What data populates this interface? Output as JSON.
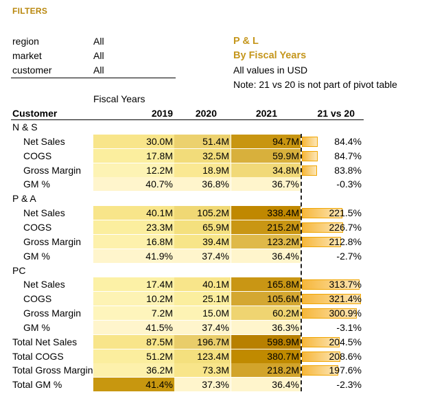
{
  "filters": {
    "title": "FILTERS",
    "items": [
      {
        "label": "region",
        "value": "All"
      },
      {
        "label": "market",
        "value": "All"
      },
      {
        "label": "customer",
        "value": "All"
      }
    ]
  },
  "report": {
    "title": "P & L",
    "subtitle": "By Fiscal Years",
    "currency_note": "All values in USD",
    "note": "Note: 21 vs 20 is not part of pivot table"
  },
  "table": {
    "group_header": "Fiscal Years",
    "columns": [
      "Customer",
      "2019",
      "2020",
      "2021",
      "21 vs 20"
    ],
    "rows": [
      {
        "label": "N & S",
        "type": "group"
      },
      {
        "label": "Net Sales",
        "type": "item",
        "v": [
          "30.0M",
          "51.4M",
          "94.7M"
        ],
        "pct": "84.4%",
        "growth": 84.4
      },
      {
        "label": "COGS",
        "type": "item",
        "v": [
          "17.8M",
          "32.5M",
          "59.9M"
        ],
        "pct": "84.7%",
        "growth": 84.7
      },
      {
        "label": "Gross Margin",
        "type": "item",
        "v": [
          "12.2M",
          "18.9M",
          "34.8M"
        ],
        "pct": "83.8%",
        "growth": 83.8
      },
      {
        "label": "GM %",
        "type": "item",
        "v": [
          "40.7%",
          "36.8%",
          "36.7%"
        ],
        "pct": "-0.3%",
        "growth": -0.3
      },
      {
        "label": "P & A",
        "type": "group"
      },
      {
        "label": "Net Sales",
        "type": "item",
        "v": [
          "40.1M",
          "105.2M",
          "338.4M"
        ],
        "pct": "221.5%",
        "growth": 221.5
      },
      {
        "label": "COGS",
        "type": "item",
        "v": [
          "23.3M",
          "65.9M",
          "215.2M"
        ],
        "pct": "226.7%",
        "growth": 226.7
      },
      {
        "label": "Gross Margin",
        "type": "item",
        "v": [
          "16.8M",
          "39.4M",
          "123.2M"
        ],
        "pct": "212.8%",
        "growth": 212.8
      },
      {
        "label": "GM %",
        "type": "item",
        "v": [
          "41.9%",
          "37.4%",
          "36.4%"
        ],
        "pct": "-2.7%",
        "growth": -2.7
      },
      {
        "label": "PC",
        "type": "group"
      },
      {
        "label": "Net Sales",
        "type": "item",
        "v": [
          "17.4M",
          "40.1M",
          "165.8M"
        ],
        "pct": "313.7%",
        "growth": 313.7
      },
      {
        "label": "COGS",
        "type": "item",
        "v": [
          "10.2M",
          "25.1M",
          "105.6M"
        ],
        "pct": "321.4%",
        "growth": 321.4
      },
      {
        "label": "Gross Margin",
        "type": "item",
        "v": [
          "7.2M",
          "15.0M",
          "60.2M"
        ],
        "pct": "300.9%",
        "growth": 300.9
      },
      {
        "label": "GM %",
        "type": "item",
        "v": [
          "41.5%",
          "37.4%",
          "36.3%"
        ],
        "pct": "-3.1%",
        "growth": -3.1
      },
      {
        "label": "Total Net Sales",
        "type": "total",
        "v": [
          "87.5M",
          "196.7M",
          "598.9M"
        ],
        "pct": "204.5%",
        "growth": 204.5
      },
      {
        "label": "Total COGS",
        "type": "total",
        "v": [
          "51.2M",
          "123.4M",
          "380.7M"
        ],
        "pct": "208.6%",
        "growth": 208.6
      },
      {
        "label": "Total Gross Margin",
        "type": "total",
        "v": [
          "36.2M",
          "73.3M",
          "218.2M"
        ],
        "pct": "197.6%",
        "growth": 197.6
      },
      {
        "label": "Total GM %",
        "type": "total",
        "v": [
          "41.4%",
          "37.3%",
          "36.4%"
        ],
        "pct": "-2.3%",
        "growth": -2.3
      }
    ],
    "heat": [
      null,
      [
        "#f8e58a",
        "#ecd16e",
        "#c89511"
      ],
      [
        "#fbee9e",
        "#f2dc7a",
        "#d8b03c"
      ],
      [
        "#fdf3b4",
        "#fae892",
        "#f1d978"
      ],
      [
        "#fff5cc",
        "#fff5cc",
        "#fff5cc"
      ],
      null,
      [
        "#f8e58a",
        "#f0d874",
        "#c08800"
      ],
      [
        "#fbee9e",
        "#f4e07e",
        "#c99614"
      ],
      [
        "#fdf1ac",
        "#f7e588",
        "#dfb949"
      ],
      [
        "#fff5cc",
        "#fff5cc",
        "#fff5cc"
      ],
      null,
      [
        "#fcf1a6",
        "#f8e58a",
        "#c99614"
      ],
      [
        "#fdf3b4",
        "#fbee9e",
        "#d4a731"
      ],
      [
        "#fef5bc",
        "#fdf3b4",
        "#efd471"
      ],
      [
        "#fff5cc",
        "#fff5cc",
        "#fff5cc"
      ],
      [
        "#f8e58a",
        "#e9cd6a",
        "#b88000"
      ],
      [
        "#fbee9e",
        "#f4e07e",
        "#c08a00"
      ],
      [
        "#fdf1ac",
        "#f8e58a",
        "#d2a42b"
      ],
      [
        "#c8970f",
        "#fff5cc",
        "#fff5cc"
      ]
    ]
  }
}
